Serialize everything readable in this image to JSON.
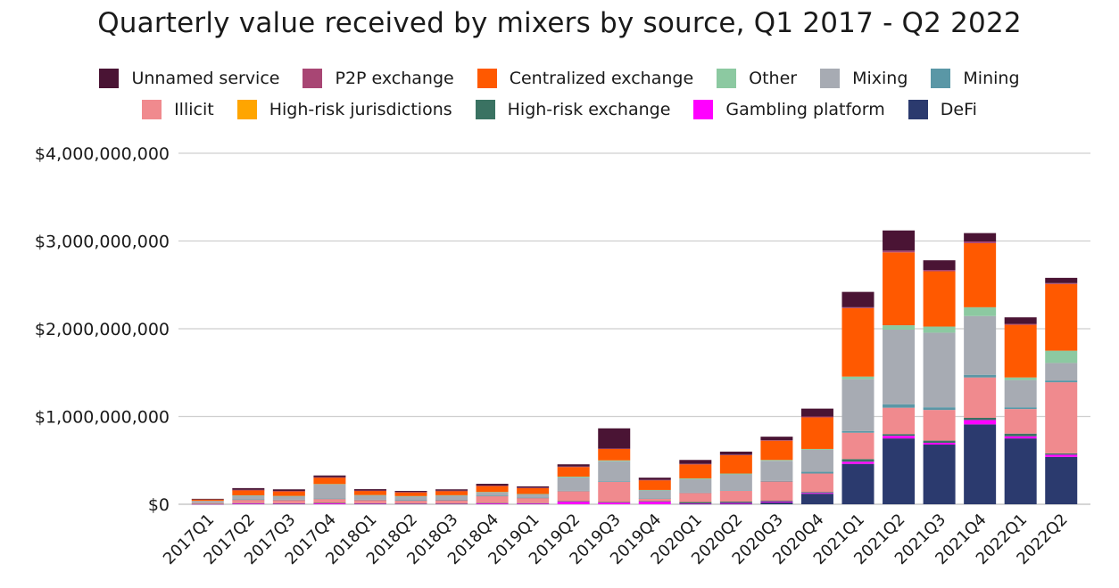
{
  "chart_data": {
    "type": "bar",
    "stacked": true,
    "title": "Quarterly value received by mixers by source, Q1 2017 - Q2 2022",
    "xlabel": "",
    "ylabel": "",
    "ylim": [
      0,
      4000000000
    ],
    "yticks": [
      {
        "value": 0,
        "label": "$0"
      },
      {
        "value": 1000000000,
        "label": "$1,000,000,000"
      },
      {
        "value": 2000000000,
        "label": "$2,000,000,000"
      },
      {
        "value": 3000000000,
        "label": "$3,000,000,000"
      },
      {
        "value": 4000000000,
        "label": "$4,000,000,000"
      }
    ],
    "grid": true,
    "legend_position": "top",
    "categories": [
      "2017Q1",
      "2017Q2",
      "2017Q3",
      "2017Q4",
      "2018Q1",
      "2018Q2",
      "2018Q3",
      "2018Q4",
      "2019Q1",
      "2019Q2",
      "2019Q3",
      "2019Q4",
      "2020Q1",
      "2020Q2",
      "2020Q3",
      "2020Q4",
      "2021Q1",
      "2021Q2",
      "2021Q3",
      "2021Q4",
      "2022Q1",
      "2022Q2"
    ],
    "legend_rows": [
      [
        "Unnamed service",
        "P2P exchange",
        "Centralized exchange",
        "Other",
        "Mixing",
        "Mining"
      ],
      [
        "Illicit",
        "High-risk jurisdictions",
        "High-risk exchange",
        "Gambling platform",
        "DeFi"
      ]
    ],
    "series": [
      {
        "name": "DeFi",
        "color": "#2b3a6e",
        "values": [
          0,
          0,
          0,
          0,
          0,
          0,
          0,
          0,
          0,
          0,
          0,
          0,
          5000000,
          5000000,
          20000000,
          120000000,
          460000000,
          750000000,
          680000000,
          910000000,
          750000000,
          540000000
        ]
      },
      {
        "name": "Gambling platform",
        "color": "#ff00ff",
        "values": [
          2000000,
          10000000,
          8000000,
          10000000,
          8000000,
          6000000,
          6000000,
          10000000,
          10000000,
          30000000,
          20000000,
          30000000,
          5000000,
          10000000,
          10000000,
          10000000,
          25000000,
          30000000,
          20000000,
          50000000,
          25000000,
          25000000
        ]
      },
      {
        "name": "High-risk exchange",
        "color": "#3a7262",
        "values": [
          2000000,
          3000000,
          3000000,
          5000000,
          3000000,
          3000000,
          3000000,
          4000000,
          3000000,
          5000000,
          5000000,
          5000000,
          15000000,
          15000000,
          10000000,
          10000000,
          30000000,
          20000000,
          25000000,
          25000000,
          30000000,
          15000000
        ]
      },
      {
        "name": "High-risk jurisdictions",
        "color": "#ffa500",
        "values": [
          0,
          0,
          0,
          0,
          0,
          0,
          0,
          0,
          0,
          0,
          0,
          0,
          0,
          0,
          0,
          0,
          0,
          0,
          0,
          0,
          0,
          0
        ]
      },
      {
        "name": "Illicit",
        "color": "#f08a8e",
        "values": [
          10000000,
          40000000,
          40000000,
          45000000,
          40000000,
          35000000,
          40000000,
          80000000,
          60000000,
          115000000,
          230000000,
          30000000,
          105000000,
          125000000,
          220000000,
          210000000,
          300000000,
          300000000,
          350000000,
          460000000,
          280000000,
          810000000
        ]
      },
      {
        "name": "Mining",
        "color": "#5a97a6",
        "values": [
          0,
          2000000,
          2000000,
          5000000,
          2000000,
          2000000,
          2000000,
          3000000,
          2000000,
          5000000,
          5000000,
          3000000,
          5000000,
          5000000,
          5000000,
          20000000,
          20000000,
          40000000,
          30000000,
          30000000,
          20000000,
          20000000
        ]
      },
      {
        "name": "Mixing",
        "color": "#a7abb3",
        "values": [
          25000000,
          45000000,
          40000000,
          160000000,
          50000000,
          45000000,
          50000000,
          40000000,
          40000000,
          150000000,
          230000000,
          90000000,
          150000000,
          180000000,
          230000000,
          250000000,
          590000000,
          850000000,
          850000000,
          670000000,
          310000000,
          200000000
        ]
      },
      {
        "name": "Other",
        "color": "#8cc9a1",
        "values": [
          0,
          2000000,
          2000000,
          5000000,
          2000000,
          2000000,
          2000000,
          3000000,
          2000000,
          10000000,
          10000000,
          5000000,
          10000000,
          10000000,
          10000000,
          10000000,
          30000000,
          50000000,
          70000000,
          100000000,
          30000000,
          140000000
        ]
      },
      {
        "name": "Centralized exchange",
        "color": "#ff5900",
        "values": [
          15000000,
          60000000,
          55000000,
          75000000,
          50000000,
          45000000,
          50000000,
          70000000,
          70000000,
          110000000,
          130000000,
          110000000,
          160000000,
          210000000,
          220000000,
          360000000,
          780000000,
          830000000,
          630000000,
          730000000,
          600000000,
          760000000
        ]
      },
      {
        "name": "P2P exchange",
        "color": "#a84674",
        "values": [
          0,
          2000000,
          2000000,
          3000000,
          2000000,
          2000000,
          2000000,
          3000000,
          2000000,
          5000000,
          5000000,
          5000000,
          5000000,
          5000000,
          5000000,
          10000000,
          10000000,
          20000000,
          15000000,
          20000000,
          10000000,
          10000000
        ]
      },
      {
        "name": "Unnamed service",
        "color": "#4a1434",
        "values": [
          8000000,
          20000000,
          18000000,
          20000000,
          15000000,
          12000000,
          15000000,
          20000000,
          15000000,
          25000000,
          230000000,
          25000000,
          45000000,
          35000000,
          40000000,
          90000000,
          175000000,
          230000000,
          110000000,
          95000000,
          75000000,
          60000000
        ]
      }
    ]
  }
}
